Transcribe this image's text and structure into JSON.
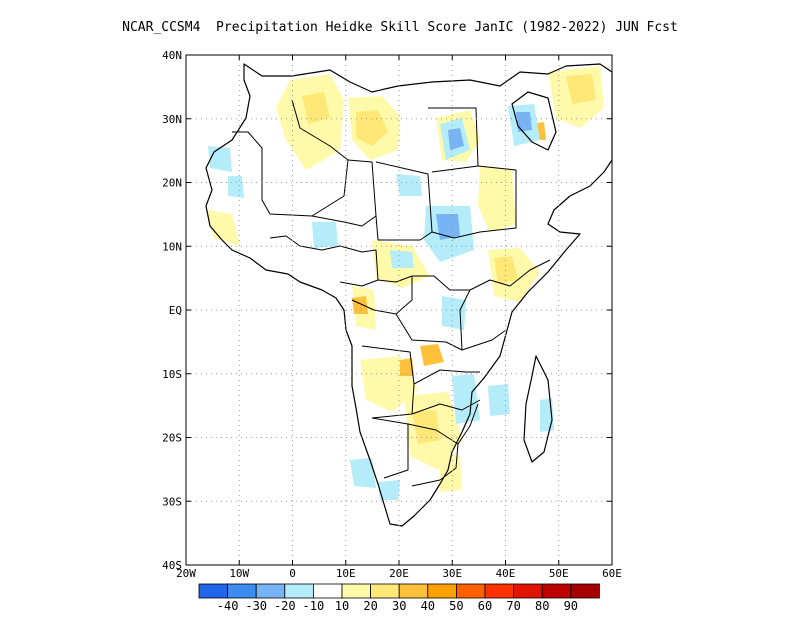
{
  "title": "NCAR_CCSM4  Precipitation Heidke Skill Score JanIC (1982-2022) JUN Fcst",
  "axes": {
    "lat_labels": [
      "40N",
      "30N",
      "20N",
      "10N",
      "EQ",
      "10S",
      "20S",
      "30S",
      "40S"
    ],
    "lon_labels": [
      "20W",
      "10W",
      "0",
      "10E",
      "20E",
      "30E",
      "40E",
      "50E",
      "60E"
    ],
    "lon_range": [
      -20,
      60
    ],
    "lat_range": [
      -40,
      40
    ],
    "grid": "dotted"
  },
  "colorbar": {
    "colors": [
      "#1f66e8",
      "#3c8cf0",
      "#78b4f5",
      "#b4ecfa",
      "#ffffff",
      "#fffaaa",
      "#ffe878",
      "#ffc03c",
      "#ffa000",
      "#ff6000",
      "#ff3200",
      "#e11400",
      "#c00000",
      "#a50000"
    ],
    "labels": [
      "-40",
      "-30",
      "-20",
      "-10",
      "10",
      "20",
      "30",
      "40",
      "50",
      "60",
      "70",
      "80",
      "90"
    ]
  },
  "map_features": {
    "landmass": "Africa",
    "fill_colors": {
      "light_yellow": "#fffaaa",
      "yellow": "#ffe878",
      "orange": "#ffc03c",
      "dark_orange": "#ffa000",
      "light_blue": "#b4ecfa",
      "blue": "#78b4f5"
    }
  }
}
